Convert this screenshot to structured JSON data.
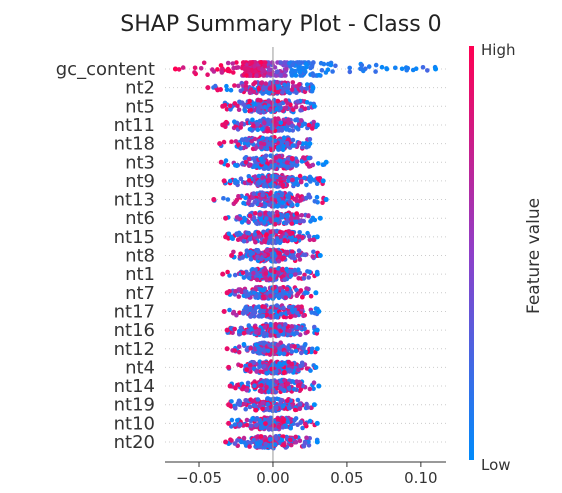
{
  "chart_data": {
    "type": "scatter",
    "title": "SHAP Summary Plot - Class 0",
    "xlabel": "",
    "ylabel": "",
    "xlim": [
      -0.073,
      0.117
    ],
    "x_ticks": [
      {
        "value": -0.05,
        "label": "−0.05"
      },
      {
        "value": 0.0,
        "label": "0.00"
      },
      {
        "value": 0.05,
        "label": "0.05"
      },
      {
        "value": 0.1,
        "label": "0.10"
      }
    ],
    "features": [
      {
        "name": "gc_content",
        "min": -0.066,
        "max": 0.11,
        "spread": 1.0,
        "core": 0.035
      },
      {
        "name": "nt2",
        "min": -0.044,
        "max": 0.027,
        "spread": 0.55,
        "core": 0.02
      },
      {
        "name": "nt5",
        "min": -0.034,
        "max": 0.028,
        "spread": 0.6,
        "core": 0.02
      },
      {
        "name": "nt11",
        "min": -0.034,
        "max": 0.03,
        "spread": 0.6,
        "core": 0.02
      },
      {
        "name": "nt18",
        "min": -0.036,
        "max": 0.025,
        "spread": 0.6,
        "core": 0.02
      },
      {
        "name": "nt3",
        "min": -0.035,
        "max": 0.036,
        "spread": 0.6,
        "core": 0.02
      },
      {
        "name": "nt9",
        "min": -0.033,
        "max": 0.034,
        "spread": 0.55,
        "core": 0.02
      },
      {
        "name": "nt13",
        "min": -0.04,
        "max": 0.036,
        "spread": 0.65,
        "core": 0.02
      },
      {
        "name": "nt6",
        "min": -0.032,
        "max": 0.032,
        "spread": 0.55,
        "core": 0.02
      },
      {
        "name": "nt15",
        "min": -0.032,
        "max": 0.03,
        "spread": 0.55,
        "core": 0.02
      },
      {
        "name": "nt8",
        "min": -0.028,
        "max": 0.032,
        "spread": 0.55,
        "core": 0.02
      },
      {
        "name": "nt1",
        "min": -0.034,
        "max": 0.03,
        "spread": 0.55,
        "core": 0.02
      },
      {
        "name": "nt7",
        "min": -0.031,
        "max": 0.029,
        "spread": 0.55,
        "core": 0.02
      },
      {
        "name": "nt17",
        "min": -0.033,
        "max": 0.031,
        "spread": 0.55,
        "core": 0.02
      },
      {
        "name": "nt16",
        "min": -0.031,
        "max": 0.03,
        "spread": 0.55,
        "core": 0.02
      },
      {
        "name": "nt12",
        "min": -0.031,
        "max": 0.03,
        "spread": 0.55,
        "core": 0.02
      },
      {
        "name": "nt4",
        "min": -0.03,
        "max": 0.029,
        "spread": 0.55,
        "core": 0.02
      },
      {
        "name": "nt14",
        "min": -0.029,
        "max": 0.031,
        "spread": 0.55,
        "core": 0.02
      },
      {
        "name": "nt19",
        "min": -0.03,
        "max": 0.028,
        "spread": 0.55,
        "core": 0.02
      },
      {
        "name": "nt10",
        "min": -0.03,
        "max": 0.03,
        "spread": 0.55,
        "core": 0.02
      },
      {
        "name": "nt20",
        "min": -0.032,
        "max": 0.03,
        "spread": 0.55,
        "core": 0.02
      }
    ],
    "colorbar": {
      "high_label": "High",
      "low_label": "Low",
      "title": "Feature value",
      "high_color": "#ff0052",
      "mid_color": "#8f3fc9",
      "low_color": "#008bfb"
    },
    "grid": false,
    "legend": "colorbar-right"
  }
}
